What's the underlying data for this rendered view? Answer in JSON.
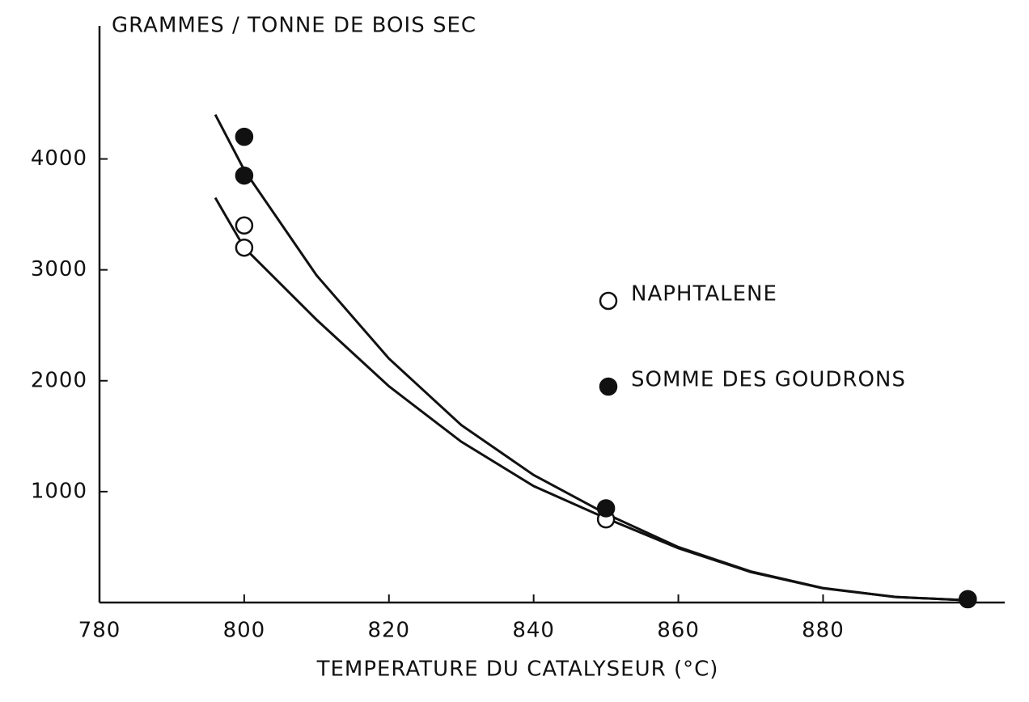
{
  "chart_data": {
    "type": "scatter",
    "title": "GRAMMES / TONNE DE BOIS SEC",
    "x_label": "TEMPERATURE DU CATALYSEUR (°C)",
    "xlim": [
      780,
      906
    ],
    "xticks": [
      780,
      800,
      820,
      840,
      860,
      880
    ],
    "ylim": [
      0,
      5200
    ],
    "yticks": [
      1000,
      2000,
      3000,
      4000
    ],
    "legend": "right",
    "grid": false,
    "series": [
      {
        "name": "NAPHTALENE",
        "color": "#111111",
        "filled": false,
        "x": [
          800,
          800,
          850,
          900
        ],
        "values": [
          3400,
          3200,
          750,
          30
        ]
      },
      {
        "name": "SOMME DES GOUDRONS",
        "color": "#111111",
        "filled": true,
        "x": [
          800,
          800,
          850,
          900
        ],
        "values": [
          4200,
          3850,
          850,
          30
        ]
      }
    ],
    "curves": [
      {
        "color": "#111111",
        "x": [
          796,
          800,
          810,
          820,
          830,
          840,
          850,
          860,
          870,
          880,
          890,
          900
        ],
        "values": [
          4400,
          3900,
          2950,
          2200,
          1600,
          1150,
          800,
          500,
          280,
          130,
          50,
          20
        ]
      },
      {
        "color": "#111111",
        "x": [
          796,
          800,
          810,
          820,
          830,
          840,
          850,
          860,
          870,
          880,
          890,
          900
        ],
        "values": [
          3650,
          3200,
          2550,
          1950,
          1450,
          1050,
          760,
          490,
          275,
          128,
          50,
          20
        ]
      }
    ]
  }
}
